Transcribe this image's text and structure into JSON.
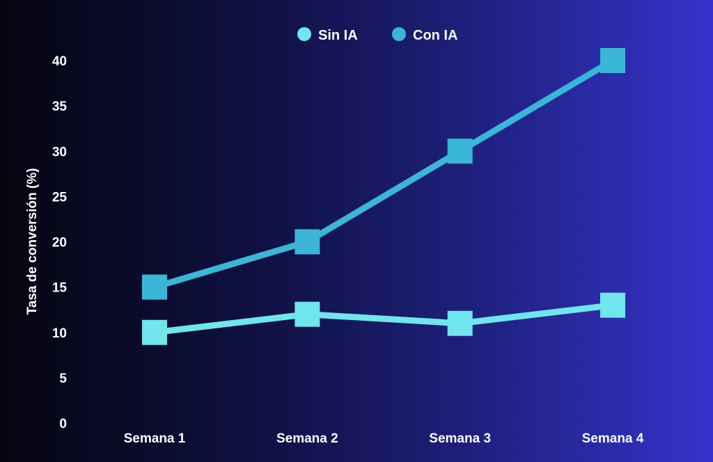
{
  "chart_data": {
    "type": "line",
    "categories": [
      "Semana 1",
      "Semana 2",
      "Semana 3",
      "Semana 4"
    ],
    "series": [
      {
        "name": "Sin IA",
        "values": [
          10,
          12,
          11,
          13
        ],
        "color": "#6ee6ec",
        "marker": "square"
      },
      {
        "name": "Con IA",
        "values": [
          15,
          20,
          30,
          40
        ],
        "color": "#3ab6d6",
        "marker": "square"
      }
    ],
    "ylabel": "Tasa de conversión (%)",
    "xlabel": "",
    "ylim": [
      0,
      40
    ],
    "yticks": [
      0,
      5,
      10,
      15,
      20,
      25,
      30,
      35,
      40
    ],
    "grid": false,
    "legend": {
      "position": "top-center",
      "marker": "circle"
    },
    "background": {
      "from": "#050510",
      "to": "#3533cc",
      "direction": "left-to-right"
    }
  }
}
